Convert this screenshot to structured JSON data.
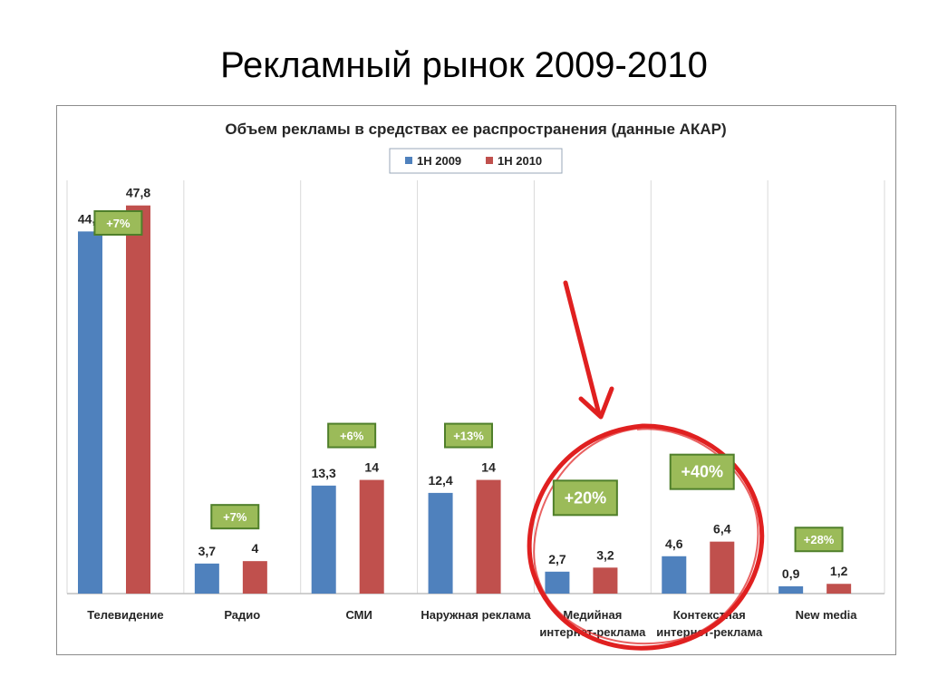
{
  "slide": {
    "title": "Рекламный рынок 2009-2010"
  },
  "colors": {
    "series1": "#4F81BD",
    "series2": "#C0504D",
    "badge_fill": "#9BBB59",
    "badge_border": "#4F7F2A",
    "annotation": "#E02020"
  },
  "chart_data": {
    "type": "bar",
    "title": "Объем рекламы в средствах ее распространения (данные АКАР)",
    "legend_position": "top",
    "ylim": [
      0,
      50
    ],
    "grid": false,
    "categories": [
      "Телевидение",
      "Радио",
      "СМИ",
      "Наружная реклама",
      "Медийная интернет-реклама",
      "Контекстная интернет-реклама",
      "New media"
    ],
    "series": [
      {
        "name": "1H 2009",
        "values": [
          44.6,
          3.7,
          13.3,
          12.4,
          2.7,
          4.6,
          0.9
        ],
        "labels": [
          "44,6",
          "3,7",
          "13,3",
          "12,4",
          "2,7",
          "4,6",
          "0,9"
        ]
      },
      {
        "name": "1H 2010",
        "values": [
          47.8,
          4,
          14,
          14,
          3.2,
          6.4,
          1.2
        ],
        "labels": [
          "47,8",
          "4",
          "14",
          "14",
          "3,2",
          "6,4",
          "1,2"
        ]
      }
    ],
    "growth_labels": [
      "+7%",
      "+7%",
      "+6%",
      "+13%",
      "+20%",
      "+40%",
      "+28%"
    ],
    "annotations": "red arrow and hand-drawn circle highlighting internet advertising categories"
  }
}
